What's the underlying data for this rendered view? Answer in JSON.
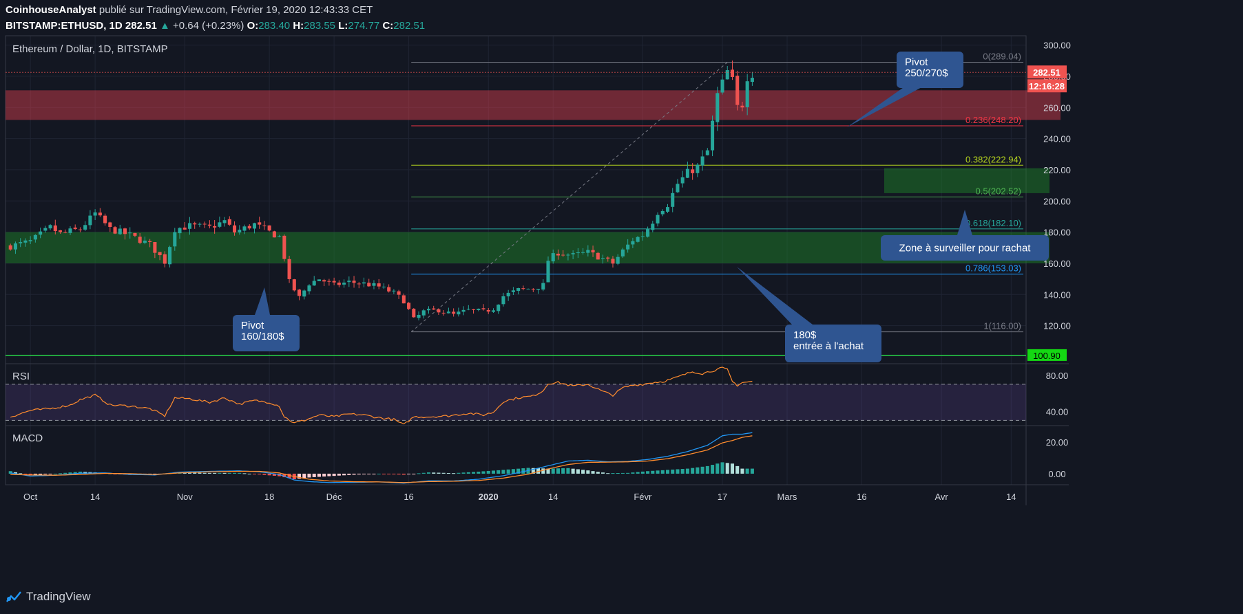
{
  "header": {
    "author": "CoinhouseAnalyst",
    "published": " publié sur TradingView.com, Février 19, 2020 12:43:33 CET",
    "symbol": "BITSTAMP:ETHUSD, 1D",
    "last": "282.51",
    "arrow": "▲",
    "change": "+0.64 (+0.23%)",
    "o_label": "O:",
    "o_value": "283.40",
    "h_label": "H:",
    "h_value": "283.55",
    "l_label": "L:",
    "l_value": "274.77",
    "c_label": "C:",
    "c_value": "282.51"
  },
  "footer": {
    "brand": "TradingView"
  },
  "colors": {
    "bg": "#131722",
    "up": "#26a69a",
    "down": "#ef5350",
    "grid": "#1f2433",
    "text": "#d1d4dc",
    "axis_border": "#363a45",
    "callout": "#2f5591",
    "rsi": "#ff8c2e",
    "macd": "#2196f3",
    "signal": "#ff8c2e"
  },
  "chart_data": [
    {
      "type": "candlestick",
      "title": "Ethereum / Dollar, 1D, BITSTAMP",
      "ylim": [
        96,
        306
      ],
      "y_ticks": [
        "120.00",
        "140.00",
        "160.00",
        "180.00",
        "200.00",
        "220.00",
        "240.00",
        "260.00",
        "280.00",
        "300.00"
      ],
      "x_ticks": [
        {
          "label": "Oct",
          "day": 0
        },
        {
          "label": "14",
          "day": 13
        },
        {
          "label": "Nov",
          "day": 31
        },
        {
          "label": "18",
          "day": 48
        },
        {
          "label": "Déc",
          "day": 61
        },
        {
          "label": "16",
          "day": 76
        },
        {
          "label": "2020",
          "day": 92,
          "bold": true
        },
        {
          "label": "14",
          "day": 105
        },
        {
          "label": "Févr",
          "day": 123
        },
        {
          "label": "17",
          "day": 139
        },
        {
          "label": "Mars",
          "day": 152
        },
        {
          "label": "16",
          "day": 167
        },
        {
          "label": "Avr",
          "day": 183
        },
        {
          "label": "14",
          "day": 197
        }
      ],
      "x_range_days": [
        -5,
        200
      ],
      "anchors": [
        [
          -4,
          171
        ],
        [
          0,
          174
        ],
        [
          4,
          183
        ],
        [
          6,
          179
        ],
        [
          10,
          182
        ],
        [
          13,
          192
        ],
        [
          16,
          182
        ],
        [
          20,
          178
        ],
        [
          24,
          172
        ],
        [
          27,
          161
        ],
        [
          29,
          182
        ],
        [
          32,
          184
        ],
        [
          36,
          183
        ],
        [
          39,
          187
        ],
        [
          41,
          180
        ],
        [
          45,
          185
        ],
        [
          48,
          180
        ],
        [
          50,
          177
        ],
        [
          51,
          164
        ],
        [
          52,
          148
        ],
        [
          54,
          138
        ],
        [
          56,
          147
        ],
        [
          58,
          150
        ],
        [
          61,
          146
        ],
        [
          64,
          148
        ],
        [
          67,
          147
        ],
        [
          70,
          145
        ],
        [
          73,
          141
        ],
        [
          75,
          136
        ],
        [
          77,
          124
        ],
        [
          79,
          129
        ],
        [
          82,
          130
        ],
        [
          85,
          127
        ],
        [
          88,
          130
        ],
        [
          91,
          129
        ],
        [
          93,
          131
        ],
        [
          95,
          139
        ],
        [
          98,
          143
        ],
        [
          101,
          144
        ],
        [
          103,
          146
        ],
        [
          104,
          162
        ],
        [
          106,
          167
        ],
        [
          109,
          165
        ],
        [
          112,
          167
        ],
        [
          115,
          163
        ],
        [
          117,
          160
        ],
        [
          119,
          168
        ],
        [
          121,
          175
        ],
        [
          123,
          178
        ],
        [
          125,
          187
        ],
        [
          126,
          193
        ],
        [
          128,
          198
        ],
        [
          130,
          211
        ],
        [
          132,
          218
        ],
        [
          134,
          222
        ],
        [
          136,
          232
        ],
        [
          137,
          250
        ],
        [
          138,
          268
        ],
        [
          140,
          283
        ],
        [
          141,
          277
        ],
        [
          142,
          260
        ],
        [
          143,
          262
        ],
        [
          144,
          280
        ],
        [
          145,
          282
        ]
      ],
      "last_price": "282.51",
      "countdown": "12:16:28",
      "price_line_label": "100.90",
      "zones": [
        {
          "name": "resistance",
          "from": 252,
          "to": 271,
          "color": "#e04050"
        },
        {
          "name": "support",
          "from": 160,
          "to": 180,
          "color": "#1e8c2a"
        },
        {
          "name": "buy-zone",
          "from": 205,
          "to": 221,
          "color": "#1e8c2a"
        }
      ],
      "fibonacci": {
        "levels": [
          {
            "label": "0(289.04)",
            "value": 289.04,
            "color": "#787b86"
          },
          {
            "label": "0.236(248.20)",
            "value": 248.2,
            "color": "#f23645"
          },
          {
            "label": "0.382(222.94)",
            "value": 222.94,
            "color": "#b6d51e"
          },
          {
            "label": "0.5(202.52)",
            "value": 202.52,
            "color": "#4caf50"
          },
          {
            "label": "0.618(182.10)",
            "value": 182.1,
            "color": "#26a69a"
          },
          {
            "label": "0.786(153.03)",
            "value": 153.03,
            "color": "#2196f3"
          },
          {
            "label": "1(116.00)",
            "value": 116.0,
            "color": "#787b86"
          }
        ]
      },
      "annotations": [
        {
          "name": "pivot-high",
          "lines": [
            "Pivot",
            "250/270$"
          ]
        },
        {
          "name": "pivot-low",
          "lines": [
            "Pivot",
            "160/180$"
          ]
        },
        {
          "name": "entry",
          "lines": [
            "180$",
            "entrée à l'achat"
          ]
        },
        {
          "name": "watch-zone",
          "lines": [
            "Zone à surveiller pour rachat"
          ]
        }
      ]
    },
    {
      "type": "line",
      "title": "RSI",
      "ylim": [
        25,
        92
      ],
      "y_ticks": [
        "40.00",
        "80.00"
      ],
      "bands": [
        30,
        70
      ],
      "anchors": [
        [
          -4,
          34
        ],
        [
          0,
          41
        ],
        [
          4,
          43
        ],
        [
          8,
          47
        ],
        [
          10,
          53
        ],
        [
          13,
          58
        ],
        [
          16,
          47
        ],
        [
          20,
          46
        ],
        [
          24,
          43
        ],
        [
          27,
          35
        ],
        [
          29,
          55
        ],
        [
          32,
          54
        ],
        [
          36,
          50
        ],
        [
          39,
          55
        ],
        [
          42,
          48
        ],
        [
          45,
          52
        ],
        [
          48,
          50
        ],
        [
          50,
          46
        ],
        [
          51,
          34
        ],
        [
          53,
          27
        ],
        [
          55,
          30
        ],
        [
          58,
          36
        ],
        [
          61,
          34
        ],
        [
          64,
          37
        ],
        [
          67,
          36
        ],
        [
          70,
          33
        ],
        [
          73,
          31
        ],
        [
          75,
          25
        ],
        [
          77,
          34
        ],
        [
          80,
          34
        ],
        [
          84,
          35
        ],
        [
          88,
          38
        ],
        [
          91,
          36
        ],
        [
          93,
          39
        ],
        [
          95,
          51
        ],
        [
          98,
          55
        ],
        [
          101,
          57
        ],
        [
          103,
          63
        ],
        [
          104,
          71
        ],
        [
          106,
          72
        ],
        [
          109,
          68
        ],
        [
          112,
          70
        ],
        [
          115,
          62
        ],
        [
          117,
          58
        ],
        [
          119,
          66
        ],
        [
          121,
          69
        ],
        [
          123,
          70
        ],
        [
          125,
          72
        ],
        [
          127,
          73
        ],
        [
          129,
          76
        ],
        [
          131,
          80
        ],
        [
          133,
          84
        ],
        [
          135,
          82
        ],
        [
          137,
          85
        ],
        [
          139,
          88
        ],
        [
          140,
          86
        ],
        [
          141,
          73
        ],
        [
          142,
          69
        ],
        [
          143,
          72
        ],
        [
          145,
          73
        ]
      ]
    },
    {
      "type": "line",
      "title": "MACD",
      "ylim": [
        -7,
        30
      ],
      "y_ticks": [
        "0.00",
        "20.00"
      ],
      "macd_anchors": [
        [
          -4,
          0.5
        ],
        [
          0,
          -1.5
        ],
        [
          5,
          -1
        ],
        [
          10,
          0.3
        ],
        [
          15,
          0.5
        ],
        [
          20,
          -0.5
        ],
        [
          25,
          -0.8
        ],
        [
          30,
          1
        ],
        [
          36,
          1.5
        ],
        [
          42,
          1.8
        ],
        [
          46,
          1.2
        ],
        [
          50,
          -0.5
        ],
        [
          53,
          -4
        ],
        [
          56,
          -5
        ],
        [
          60,
          -5.6
        ],
        [
          65,
          -5.5
        ],
        [
          70,
          -5.2
        ],
        [
          75,
          -6
        ],
        [
          80,
          -4.5
        ],
        [
          85,
          -4.6
        ],
        [
          90,
          -3.5
        ],
        [
          95,
          -1.3
        ],
        [
          100,
          2
        ],
        [
          104,
          5
        ],
        [
          108,
          8
        ],
        [
          112,
          8.5
        ],
        [
          116,
          7.5
        ],
        [
          120,
          7.8
        ],
        [
          124,
          9
        ],
        [
          128,
          11
        ],
        [
          132,
          14
        ],
        [
          136,
          18
        ],
        [
          139,
          24
        ],
        [
          141,
          25
        ],
        [
          143,
          25
        ],
        [
          145,
          26
        ]
      ],
      "signal_anchors": [
        [
          -4,
          -0.5
        ],
        [
          0,
          -0.8
        ],
        [
          5,
          -1
        ],
        [
          10,
          -0.5
        ],
        [
          15,
          0.2
        ],
        [
          20,
          0
        ],
        [
          25,
          -0.5
        ],
        [
          30,
          0.5
        ],
        [
          36,
          1.2
        ],
        [
          42,
          1.5
        ],
        [
          46,
          1.5
        ],
        [
          50,
          0.5
        ],
        [
          53,
          -1.8
        ],
        [
          56,
          -3.5
        ],
        [
          60,
          -4.6
        ],
        [
          65,
          -5.1
        ],
        [
          70,
          -5.2
        ],
        [
          75,
          -5.6
        ],
        [
          80,
          -5
        ],
        [
          85,
          -4.8
        ],
        [
          90,
          -4.3
        ],
        [
          95,
          -2.8
        ],
        [
          100,
          -0.3
        ],
        [
          104,
          3
        ],
        [
          108,
          5.8
        ],
        [
          112,
          7.2
        ],
        [
          116,
          7.3
        ],
        [
          120,
          7.5
        ],
        [
          124,
          8
        ],
        [
          128,
          9.5
        ],
        [
          132,
          12
        ],
        [
          136,
          15
        ],
        [
          139,
          19.5
        ],
        [
          141,
          21
        ],
        [
          143,
          23
        ],
        [
          145,
          24
        ]
      ]
    }
  ]
}
